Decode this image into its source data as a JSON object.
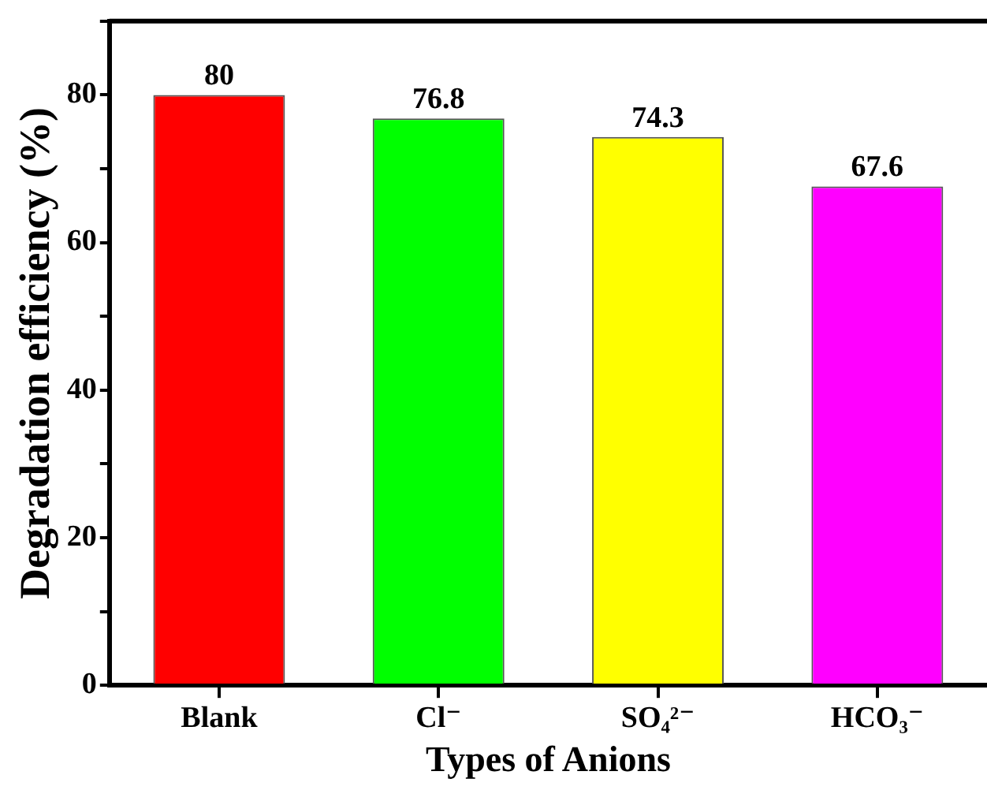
{
  "chart_data": {
    "type": "bar",
    "xlabel": "Types of Anions",
    "ylabel": "Degradation efficiency (%)",
    "categories": [
      "Blank",
      "Cl⁻",
      "SO₄²⁻",
      "HCO₃⁻"
    ],
    "values": [
      80,
      76.8,
      74.3,
      67.6
    ],
    "colors": [
      "#ff0000",
      "#00ff00",
      "#ffff00",
      "#ff00ff"
    ],
    "ylim": [
      0,
      90
    ],
    "yticks": [
      0,
      {
        "value": 10,
        "label": null
      },
      20,
      {
        "value": 30,
        "label": null
      },
      40,
      {
        "value": 50,
        "label": null
      },
      60,
      {
        "value": 70,
        "label": null
      },
      80,
      {
        "value": 90,
        "label": null
      }
    ],
    "data_labels": true,
    "grid": false,
    "legend": false
  }
}
